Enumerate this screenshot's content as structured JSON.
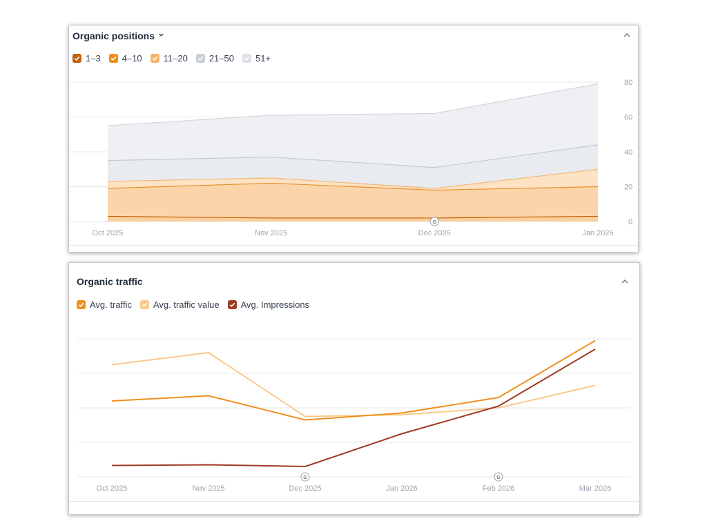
{
  "positions_panel": {
    "title": "Organic positions",
    "legend": [
      {
        "label": "1–3",
        "color": "#c2620a"
      },
      {
        "label": "4–10",
        "color": "#ef8e1c"
      },
      {
        "label": "11–20",
        "color": "#f7b569"
      },
      {
        "label": "21–50",
        "color": "#c9ced6"
      },
      {
        "label": "51+",
        "color": "#dde1e6"
      }
    ],
    "icons": {
      "dropdown": "chevron-down-icon",
      "collapse": "chevron-up-icon",
      "google_update": "google-update-icon"
    }
  },
  "traffic_panel": {
    "title": "Organic traffic",
    "legend": [
      {
        "label": "Avg. traffic",
        "color": "#f0901e"
      },
      {
        "label": "Avg. traffic value",
        "color": "#f9c98c"
      },
      {
        "label": "Avg. Impressions",
        "color": "#9e3b22"
      }
    ],
    "icons": {
      "collapse": "chevron-up-icon",
      "google_update": "google-update-icon"
    }
  },
  "chart_data": [
    {
      "type": "area",
      "stacked": true,
      "x": [
        "Oct 2025",
        "Nov 2025",
        "Dec 2025",
        "Jan 2026"
      ],
      "yticks": [
        0,
        20,
        40,
        60,
        80
      ],
      "ylim": [
        0,
        80
      ],
      "grid": true,
      "annotations": [
        {
          "x": "Dec 2025",
          "label": "G"
        }
      ],
      "series": [
        {
          "name": "1–3",
          "values": [
            3,
            2,
            2,
            3
          ],
          "color": "#c2620a"
        },
        {
          "name": "4–10",
          "values": [
            16,
            20,
            16,
            17
          ],
          "color": "#ef8e1c"
        },
        {
          "name": "11–20",
          "values": [
            4,
            3,
            1,
            10
          ],
          "color": "#f7b569"
        },
        {
          "name": "21–50",
          "values": [
            12,
            12,
            12,
            14
          ],
          "color": "#c9ced6"
        },
        {
          "name": "51+",
          "values": [
            20,
            24,
            31,
            35
          ],
          "color": "#dde1e6"
        }
      ]
    },
    {
      "type": "line",
      "x": [
        "Oct 2025",
        "Nov 2025",
        "Dec 2025",
        "Jan 2026",
        "Feb 2026",
        "Mar 2026"
      ],
      "ylim": [
        0,
        4
      ],
      "grid": true,
      "annotations": [
        {
          "x": "Dec 2025",
          "label": "G"
        },
        {
          "x": "Feb 2026",
          "label": "G"
        }
      ],
      "series": [
        {
          "name": "Avg. traffic",
          "values": [
            2.2,
            2.35,
            1.65,
            1.85,
            2.3,
            3.95
          ],
          "color": "#f0901e"
        },
        {
          "name": "Avg. traffic value",
          "values": [
            3.25,
            3.6,
            1.75,
            1.8,
            2.0,
            2.65
          ],
          "color": "#f9c98c"
        },
        {
          "name": "Avg. Impressions",
          "values": [
            0.33,
            0.35,
            0.3,
            1.25,
            2.05,
            3.7
          ],
          "color": "#9e3b22"
        }
      ]
    }
  ]
}
